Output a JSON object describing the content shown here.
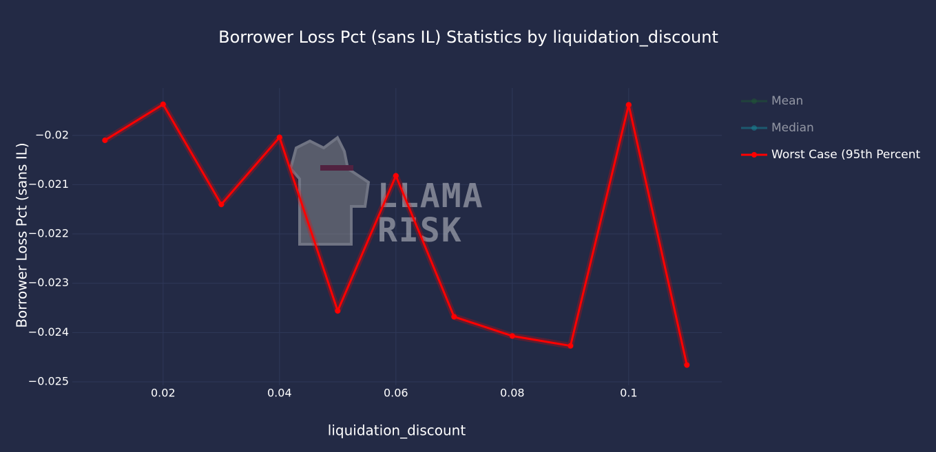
{
  "chart_data": {
    "type": "line",
    "title": "Borrower Loss Pct (sans IL) Statistics by liquidation_discount",
    "x_label": "liquidation_discount",
    "y_label": "Borrower Loss Pct (sans IL)",
    "x": [
      0.01,
      0.02,
      0.03,
      0.04,
      0.05,
      0.06,
      0.07,
      0.08,
      0.09,
      0.1,
      0.11
    ],
    "series": [
      {
        "name": "Mean",
        "color": "#1f5a34",
        "visible": false,
        "values": [
          null,
          null,
          null,
          null,
          null,
          null,
          null,
          null,
          null,
          null,
          null
        ]
      },
      {
        "name": "Median",
        "color": "#17899a",
        "visible": false,
        "values": [
          null,
          null,
          null,
          null,
          null,
          null,
          null,
          null,
          null,
          null,
          null
        ]
      },
      {
        "name": "Worst Case (95th Percent",
        "color": "#ff0000",
        "visible": true,
        "values": [
          -0.0201,
          -0.01937,
          -0.0214,
          -0.02004,
          -0.02356,
          -0.02082,
          -0.02368,
          -0.02407,
          -0.02427,
          -0.01938,
          -0.02466
        ]
      }
    ],
    "xlim": [
      0.0044,
      0.116
    ],
    "ylim": [
      -0.02507,
      -0.01904
    ],
    "xticks": [
      0.02,
      0.04,
      0.06,
      0.08,
      0.1
    ],
    "yticks": [
      {
        "value": -0.02,
        "label": "−0.02"
      },
      {
        "value": -0.021,
        "label": "−0.021"
      },
      {
        "value": -0.022,
        "label": "−0.022"
      },
      {
        "value": -0.023,
        "label": "−0.023"
      },
      {
        "value": -0.024,
        "label": "−0.024"
      },
      {
        "value": -0.025,
        "label": "−0.025"
      }
    ],
    "grid": true,
    "legend": "right",
    "watermark": [
      "LLAMA",
      "RISK"
    ]
  }
}
